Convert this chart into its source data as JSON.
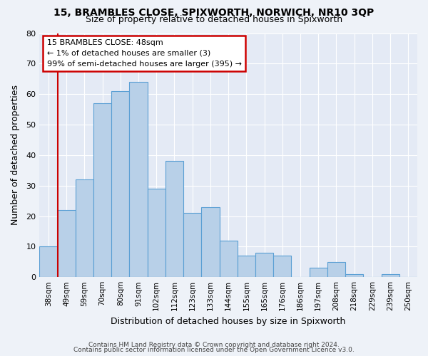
{
  "title": "15, BRAMBLES CLOSE, SPIXWORTH, NORWICH, NR10 3QP",
  "subtitle": "Size of property relative to detached houses in Spixworth",
  "xlabel": "Distribution of detached houses by size in Spixworth",
  "ylabel": "Number of detached properties",
  "categories": [
    "38sqm",
    "49sqm",
    "59sqm",
    "70sqm",
    "80sqm",
    "91sqm",
    "102sqm",
    "112sqm",
    "123sqm",
    "133sqm",
    "144sqm",
    "155sqm",
    "165sqm",
    "176sqm",
    "186sqm",
    "197sqm",
    "208sqm",
    "218sqm",
    "229sqm",
    "239sqm",
    "250sqm"
  ],
  "values": [
    10,
    22,
    32,
    57,
    61,
    64,
    29,
    38,
    21,
    23,
    12,
    7,
    8,
    7,
    0,
    3,
    5,
    1,
    0,
    1,
    0
  ],
  "bar_color": "#b8d0e8",
  "bar_edge_color": "#5a9fd4",
  "ylim": [
    0,
    80
  ],
  "yticks": [
    0,
    10,
    20,
    30,
    40,
    50,
    60,
    70,
    80
  ],
  "vline_color": "#cc0000",
  "annotation_title": "15 BRAMBLES CLOSE: 48sqm",
  "annotation_line1": "← 1% of detached houses are smaller (3)",
  "annotation_line2": "99% of semi-detached houses are larger (395) →",
  "annotation_box_color": "#cc0000",
  "footer_line1": "Contains HM Land Registry data © Crown copyright and database right 2024.",
  "footer_line2": "Contains public sector information licensed under the Open Government Licence v3.0.",
  "bg_color": "#eef2f8",
  "plot_bg_color": "#e4eaf5",
  "grid_color": "#ffffff"
}
